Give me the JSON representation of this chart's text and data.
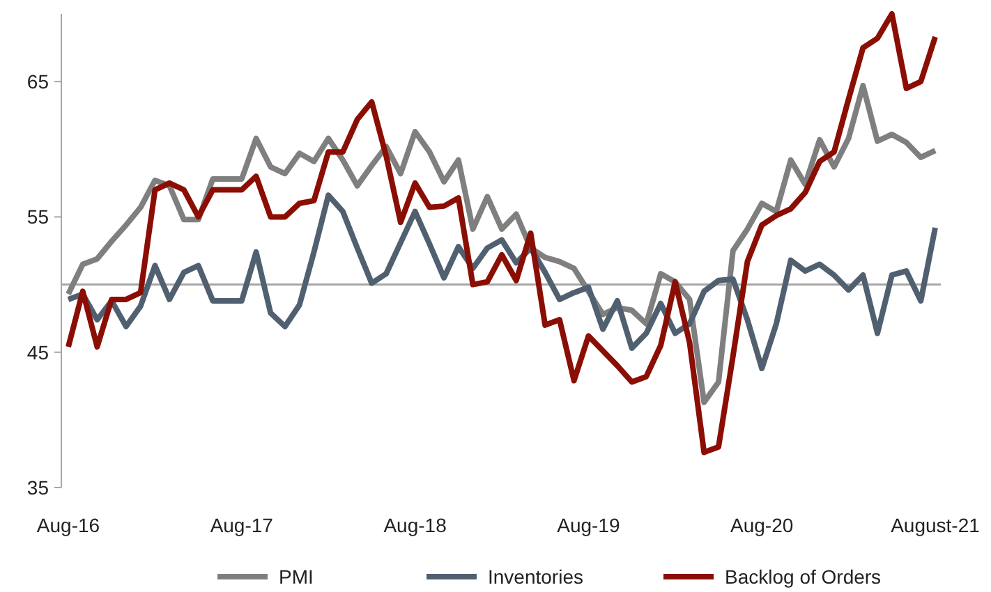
{
  "chart_data": {
    "type": "line",
    "categories": [
      "Aug-16",
      null,
      null,
      null,
      null,
      null,
      null,
      null,
      null,
      null,
      null,
      null,
      "Aug-17",
      null,
      null,
      null,
      null,
      null,
      null,
      null,
      null,
      null,
      null,
      null,
      "Aug-18",
      null,
      null,
      null,
      null,
      null,
      null,
      null,
      null,
      null,
      null,
      null,
      "Aug-19",
      null,
      null,
      null,
      null,
      null,
      null,
      null,
      null,
      null,
      null,
      null,
      "Aug-20",
      null,
      null,
      null,
      null,
      null,
      null,
      null,
      null,
      null,
      null,
      null,
      "August-21"
    ],
    "series": [
      {
        "name": "PMI",
        "color": "#7f7f7f",
        "values": [
          49.3,
          51.5,
          51.9,
          53.2,
          54.4,
          55.7,
          57.7,
          57.3,
          54.8,
          54.8,
          57.8,
          57.8,
          57.8,
          60.8,
          58.7,
          58.2,
          59.7,
          59.1,
          60.8,
          59.2,
          57.3,
          58.8,
          60.2,
          58.2,
          61.3,
          59.8,
          57.6,
          59.2,
          54.1,
          56.5,
          54.1,
          55.2,
          52.7,
          52,
          51.7,
          51.2,
          49.5,
          47.8,
          48.3,
          48.1,
          47.1,
          50.8,
          50.2,
          48.9,
          41.3,
          42.8,
          52.5,
          54.1,
          56,
          55.4,
          59.2,
          57.4,
          60.7,
          58.7,
          60.8,
          64.7,
          60.6,
          61.1,
          60.5,
          59.4,
          59.9
        ]
      },
      {
        "name": "Inventories",
        "color": "#506070",
        "values": [
          48.9,
          49.3,
          47.4,
          48.8,
          46.9,
          48.4,
          51.4,
          48.9,
          50.9,
          51.4,
          48.8,
          48.8,
          48.8,
          52.4,
          47.9,
          46.9,
          48.5,
          52.4,
          56.6,
          55.4,
          52.7,
          50.1,
          50.8,
          53.1,
          55.4,
          53,
          50.5,
          52.8,
          51.2,
          52.7,
          53.3,
          51.6,
          52.7,
          50.9,
          48.9,
          49.4,
          49.8,
          46.7,
          48.8,
          45.3,
          46.4,
          48.6,
          46.4,
          47.1,
          49.5,
          50.3,
          50.4,
          47.4,
          43.8,
          47.1,
          51.8,
          51,
          51.5,
          50.7,
          49.6,
          50.7,
          46.4,
          50.7,
          51,
          48.8,
          54.2
        ]
      },
      {
        "name": "Backlog of Orders",
        "color": "#8b0e04",
        "values": [
          45.4,
          49.5,
          45.4,
          48.9,
          48.9,
          49.4,
          57,
          57.5,
          57,
          55,
          57,
          57,
          57,
          58,
          55,
          55,
          56,
          56.2,
          59.8,
          59.8,
          62.2,
          63.5,
          59.5,
          54.6,
          57.5,
          55.7,
          55.8,
          56.4,
          50,
          50.2,
          52.2,
          50.3,
          53.8,
          47,
          47.4,
          42.9,
          46.2,
          45.1,
          44,
          42.8,
          43.2,
          45.5,
          50.2,
          45.7,
          37.6,
          38,
          44.7,
          51.7,
          54.4,
          55.1,
          55.6,
          56.8,
          59.1,
          59.8,
          63.7,
          67.5,
          68.2,
          70,
          64.5,
          65,
          68.3
        ]
      }
    ],
    "ylim": [
      35,
      70
    ],
    "yticks": [
      35,
      45,
      55,
      65
    ],
    "ref_lines": [
      {
        "axis": "y",
        "value": 50,
        "color": "#a6a6a6"
      }
    ],
    "legend": "bottom",
    "grid": false,
    "marker": "none",
    "line_style": "solid"
  }
}
